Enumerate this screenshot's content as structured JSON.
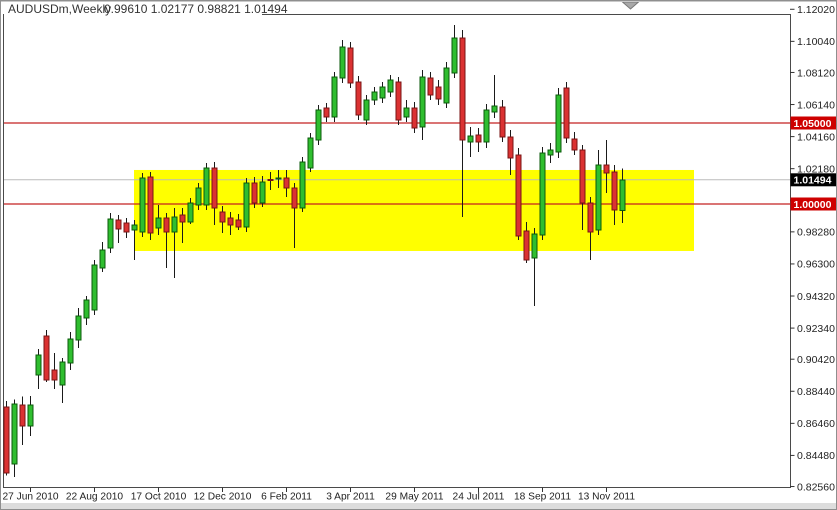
{
  "title": {
    "symbol_period": "AUDUSDm,Weekly",
    "ohlc": "0.99610 1.02177 0.98821 1.01494"
  },
  "colors": {
    "bull_fill": "#2FBE2F",
    "bull_border": "#0B5A0B",
    "bear_fill": "#DB3232",
    "bear_border": "#781414",
    "wick": "#1A1A1A",
    "hline": "#C42020",
    "tag_red_bg": "#CE0000",
    "tag_black_bg": "#000000",
    "tag_text": "#FFFFFF",
    "bid_line": "#BBBBBB",
    "rect_fill": "#FFFF00",
    "frame": "#4A4A4A",
    "axis_text": "#1F1F1F",
    "chrome_gray": "#DDDDDD",
    "shift_marker": "#A8A8A8"
  },
  "chart_data": {
    "type": "candlestick",
    "symbol": "AUDUSDm",
    "timeframe": "Weekly",
    "last_bar": {
      "open": "0.99610",
      "high": "1.02177",
      "low": "0.98821",
      "close": "1.01494"
    },
    "y_axis_labels": [
      "1.12020",
      "1.10040",
      "1.08120",
      "1.06140",
      "1.04160",
      "1.02180",
      "1.00200",
      "0.98280",
      "0.96300",
      "0.94320",
      "0.92340",
      "0.90420",
      "0.88440",
      "0.86460",
      "0.84480",
      "0.82560"
    ],
    "y_range": [
      0.8256,
      1.1202
    ],
    "x_axis_labels": [
      {
        "label": "27 Jun 2010",
        "index": 3
      },
      {
        "label": "22 Aug 2010",
        "index": 11
      },
      {
        "label": "17 Oct 2010",
        "index": 19
      },
      {
        "label": "12 Dec 2010",
        "index": 27
      },
      {
        "label": "6 Feb 2011",
        "index": 35
      },
      {
        "label": "3 Apr 2011",
        "index": 43
      },
      {
        "label": "29 May 2011",
        "index": 51
      },
      {
        "label": "24 Jul 2011",
        "index": 59
      },
      {
        "label": "18 Sep 2011",
        "index": 67
      },
      {
        "label": "13 Nov 2011",
        "index": 75
      }
    ],
    "h_lines": [
      {
        "price": 1.05,
        "label": "1.05000"
      },
      {
        "price": 1.0,
        "label": "1.00000"
      }
    ],
    "bid": {
      "price": 1.01494,
      "label": "1.01494"
    },
    "rectangle": {
      "start_index": 16,
      "end_index": 86,
      "top": 1.021,
      "bottom": 0.971
    },
    "shift_marker": {
      "index": 78
    },
    "grid": "off",
    "candles": [
      [
        0.8747,
        0.8785,
        0.8325,
        0.8341
      ],
      [
        0.8395,
        0.8792,
        0.8315,
        0.8765
      ],
      [
        0.8759,
        0.8812,
        0.8512,
        0.863
      ],
      [
        0.863,
        0.8815,
        0.8568,
        0.8759
      ],
      [
        0.8944,
        0.9105,
        0.8858,
        0.9068
      ],
      [
        0.9185,
        0.9222,
        0.8901,
        0.8914
      ],
      [
        0.8975,
        0.908,
        0.8858,
        0.8914
      ],
      [
        0.8883,
        0.9049,
        0.8772,
        0.9025
      ],
      [
        0.9019,
        0.921,
        0.8975,
        0.9167
      ],
      [
        0.916,
        0.9358,
        0.9111,
        0.9309
      ],
      [
        0.9296,
        0.9432,
        0.9253,
        0.9407
      ],
      [
        0.9346,
        0.9654,
        0.9315,
        0.9623
      ],
      [
        0.9605,
        0.9765,
        0.958,
        0.9716
      ],
      [
        0.9728,
        0.9944,
        0.9698,
        0.9907
      ],
      [
        0.9901,
        0.9932,
        0.9759,
        0.9846
      ],
      [
        0.9883,
        0.9914,
        0.979,
        0.9827
      ],
      [
        0.984,
        0.9901,
        0.9654,
        0.987
      ],
      [
        0.9827,
        1.0191,
        0.9796,
        1.016
      ],
      [
        1.0167,
        1.0198,
        0.9778,
        0.9821
      ],
      [
        0.9852,
        0.9994,
        0.9809,
        0.9914
      ],
      [
        0.9914,
        0.9944,
        0.9605,
        0.9827
      ],
      [
        0.9827,
        0.9975,
        0.9543,
        0.992
      ],
      [
        0.9932,
        0.9975,
        0.9759,
        0.9889
      ],
      [
        0.9889,
        1.0037,
        0.9877,
        1.0006
      ],
      [
        0.9994,
        1.013,
        0.9963,
        1.0099
      ],
      [
        0.9994,
        1.0253,
        0.9963,
        1.0222
      ],
      [
        1.0222,
        1.0259,
        0.987,
        0.9975
      ],
      [
        0.9951,
        0.9988,
        0.9821,
        0.9889
      ],
      [
        0.9914,
        0.9951,
        0.9809,
        0.987
      ],
      [
        0.9901,
        0.9938,
        0.984,
        0.9858
      ],
      [
        0.9858,
        1.016,
        0.9827,
        1.013
      ],
      [
        1.013,
        1.0167,
        0.9975,
        1.0006
      ],
      [
        1.0006,
        1.0173,
        0.9981,
        1.0136
      ],
      [
        1.015,
        1.0198,
        1.0086,
        1.0146
      ],
      [
        1.0158,
        1.021,
        1.0099,
        1.0162
      ],
      [
        1.016,
        1.021,
        1.0043,
        1.0099
      ],
      [
        1.0099,
        1.013,
        0.9728,
        0.9975
      ],
      [
        0.9975,
        1.029,
        0.9951,
        1.0259
      ],
      [
        1.0222,
        1.0438,
        1.0198,
        1.0407
      ],
      [
        1.0395,
        1.0611,
        1.0364,
        1.058
      ],
      [
        1.0593,
        1.0623,
        1.0506,
        1.0537
      ],
      [
        1.0537,
        1.0815,
        1.0506,
        1.0784
      ],
      [
        1.0778,
        1.1012,
        1.0747,
        1.0969
      ],
      [
        1.0963,
        1.1,
        1.0716,
        1.0747
      ],
      [
        1.0753,
        1.079,
        1.0519,
        1.0549
      ],
      [
        1.0519,
        1.0673,
        1.0488,
        1.0642
      ],
      [
        1.0642,
        1.0722,
        1.0611,
        1.0691
      ],
      [
        1.0654,
        1.0753,
        1.0623,
        1.0722
      ],
      [
        1.0691,
        1.0796,
        1.066,
        1.0765
      ],
      [
        1.0753,
        1.0784,
        1.0488,
        1.0519
      ],
      [
        1.0537,
        1.0642,
        1.0506,
        1.0593
      ],
      [
        1.0593,
        1.063,
        1.0438,
        1.0469
      ],
      [
        1.0475,
        1.0827,
        1.0395,
        1.0784
      ],
      [
        1.0778,
        1.0815,
        1.0642,
        1.0673
      ],
      [
        1.0722,
        1.0765,
        1.0611,
        1.0648
      ],
      [
        1.0623,
        1.0877,
        1.0593,
        1.084
      ],
      [
        1.0809,
        1.1105,
        1.0778,
        1.1025
      ],
      [
        1.1025,
        1.1074,
        0.992,
        1.0395
      ],
      [
        1.0383,
        1.0475,
        1.029,
        1.042
      ],
      [
        1.0426,
        1.0469,
        1.0321,
        1.0383
      ],
      [
        1.0383,
        1.0617,
        1.0346,
        1.058
      ],
      [
        1.0568,
        1.0796,
        1.0531,
        1.0605
      ],
      [
        1.0599,
        1.0642,
        1.0383,
        1.0414
      ],
      [
        1.0414,
        1.0457,
        1.0179,
        1.0284
      ],
      [
        1.0302,
        1.0346,
        0.9778,
        0.9802
      ],
      [
        0.9833,
        0.9889,
        0.9636,
        0.9654
      ],
      [
        0.9667,
        0.9852,
        0.937,
        0.9815
      ],
      [
        0.9809,
        1.0352,
        0.9778,
        1.0315
      ],
      [
        1.0302,
        1.0377,
        1.0253,
        1.0333
      ],
      [
        1.0321,
        1.0716,
        1.0284,
        1.0673
      ],
      [
        1.0716,
        1.0753,
        1.0377,
        1.0407
      ],
      [
        1.0401,
        1.0444,
        1.0302,
        1.0333
      ],
      [
        1.0333,
        1.0364,
        0.984,
        1.0006
      ],
      [
        1.0006,
        1.0043,
        0.9654,
        0.9827
      ],
      [
        0.984,
        1.0333,
        0.9809,
        1.0241
      ],
      [
        1.0241,
        1.0395,
        1.0068,
        1.0191
      ],
      [
        1.0198,
        1.0241,
        0.987,
        0.9963
      ],
      [
        0.9961,
        1.02177,
        0.98821,
        1.01494
      ]
    ]
  }
}
